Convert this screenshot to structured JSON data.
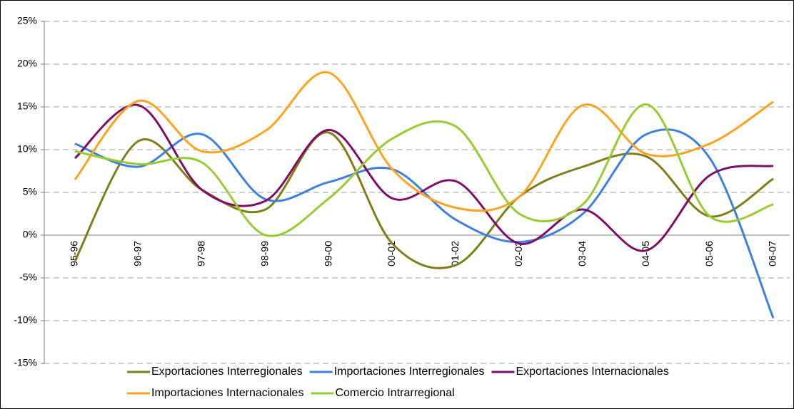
{
  "chart_data": {
    "type": "line",
    "categories": [
      "95-96",
      "96-97",
      "97-98",
      "98-99",
      "99-00",
      "00-01",
      "01-02",
      "02-03",
      "03-04",
      "04-05",
      "05-06",
      "06-07"
    ],
    "series": [
      {
        "name": "Exportaciones Interregionales",
        "color": "#7f7f1a",
        "values": [
          -3,
          11,
          5.3,
          3,
          12,
          -1,
          -3.5,
          4.5,
          8,
          9.2,
          2.2,
          6.6
        ]
      },
      {
        "name": "Importaciones Interregionales",
        "color": "#3f7fe0",
        "values": [
          10.7,
          8,
          11.8,
          4.2,
          6.2,
          7.7,
          1.8,
          -0.8,
          2.5,
          11.8,
          9,
          -9.7
        ]
      },
      {
        "name": "Exportaciones Internacionales",
        "color": "#7f0f66",
        "values": [
          9,
          15.2,
          5.3,
          4,
          12.3,
          4.3,
          6.3,
          -1,
          3,
          -1.8,
          7,
          8.1
        ]
      },
      {
        "name": "Importaciones Internacionales",
        "color": "#ffa31f",
        "values": [
          6.5,
          15.7,
          9.8,
          12.2,
          19,
          7.7,
          3.2,
          4.5,
          15.2,
          9.5,
          10.7,
          15.6
        ]
      },
      {
        "name": "Comercio Intrarregional",
        "color": "#99cc33",
        "values": [
          9.8,
          8.3,
          8.5,
          0,
          4.3,
          11.3,
          12.7,
          2.5,
          3.6,
          15.3,
          2.2,
          3.6
        ]
      }
    ],
    "ylim": [
      -15,
      25
    ],
    "yticks": [
      {
        "value": -15,
        "label": "-15%"
      },
      {
        "value": -10,
        "label": "-10%"
      },
      {
        "value": -5,
        "label": "-5%"
      },
      {
        "value": 0,
        "label": "0%"
      },
      {
        "value": 5,
        "label": "5%"
      },
      {
        "value": 10,
        "label": "10%"
      },
      {
        "value": 15,
        "label": "15%"
      },
      {
        "value": 20,
        "label": "20%"
      },
      {
        "value": 25,
        "label": "25%"
      }
    ],
    "grid": true,
    "legend": "bottom"
  }
}
